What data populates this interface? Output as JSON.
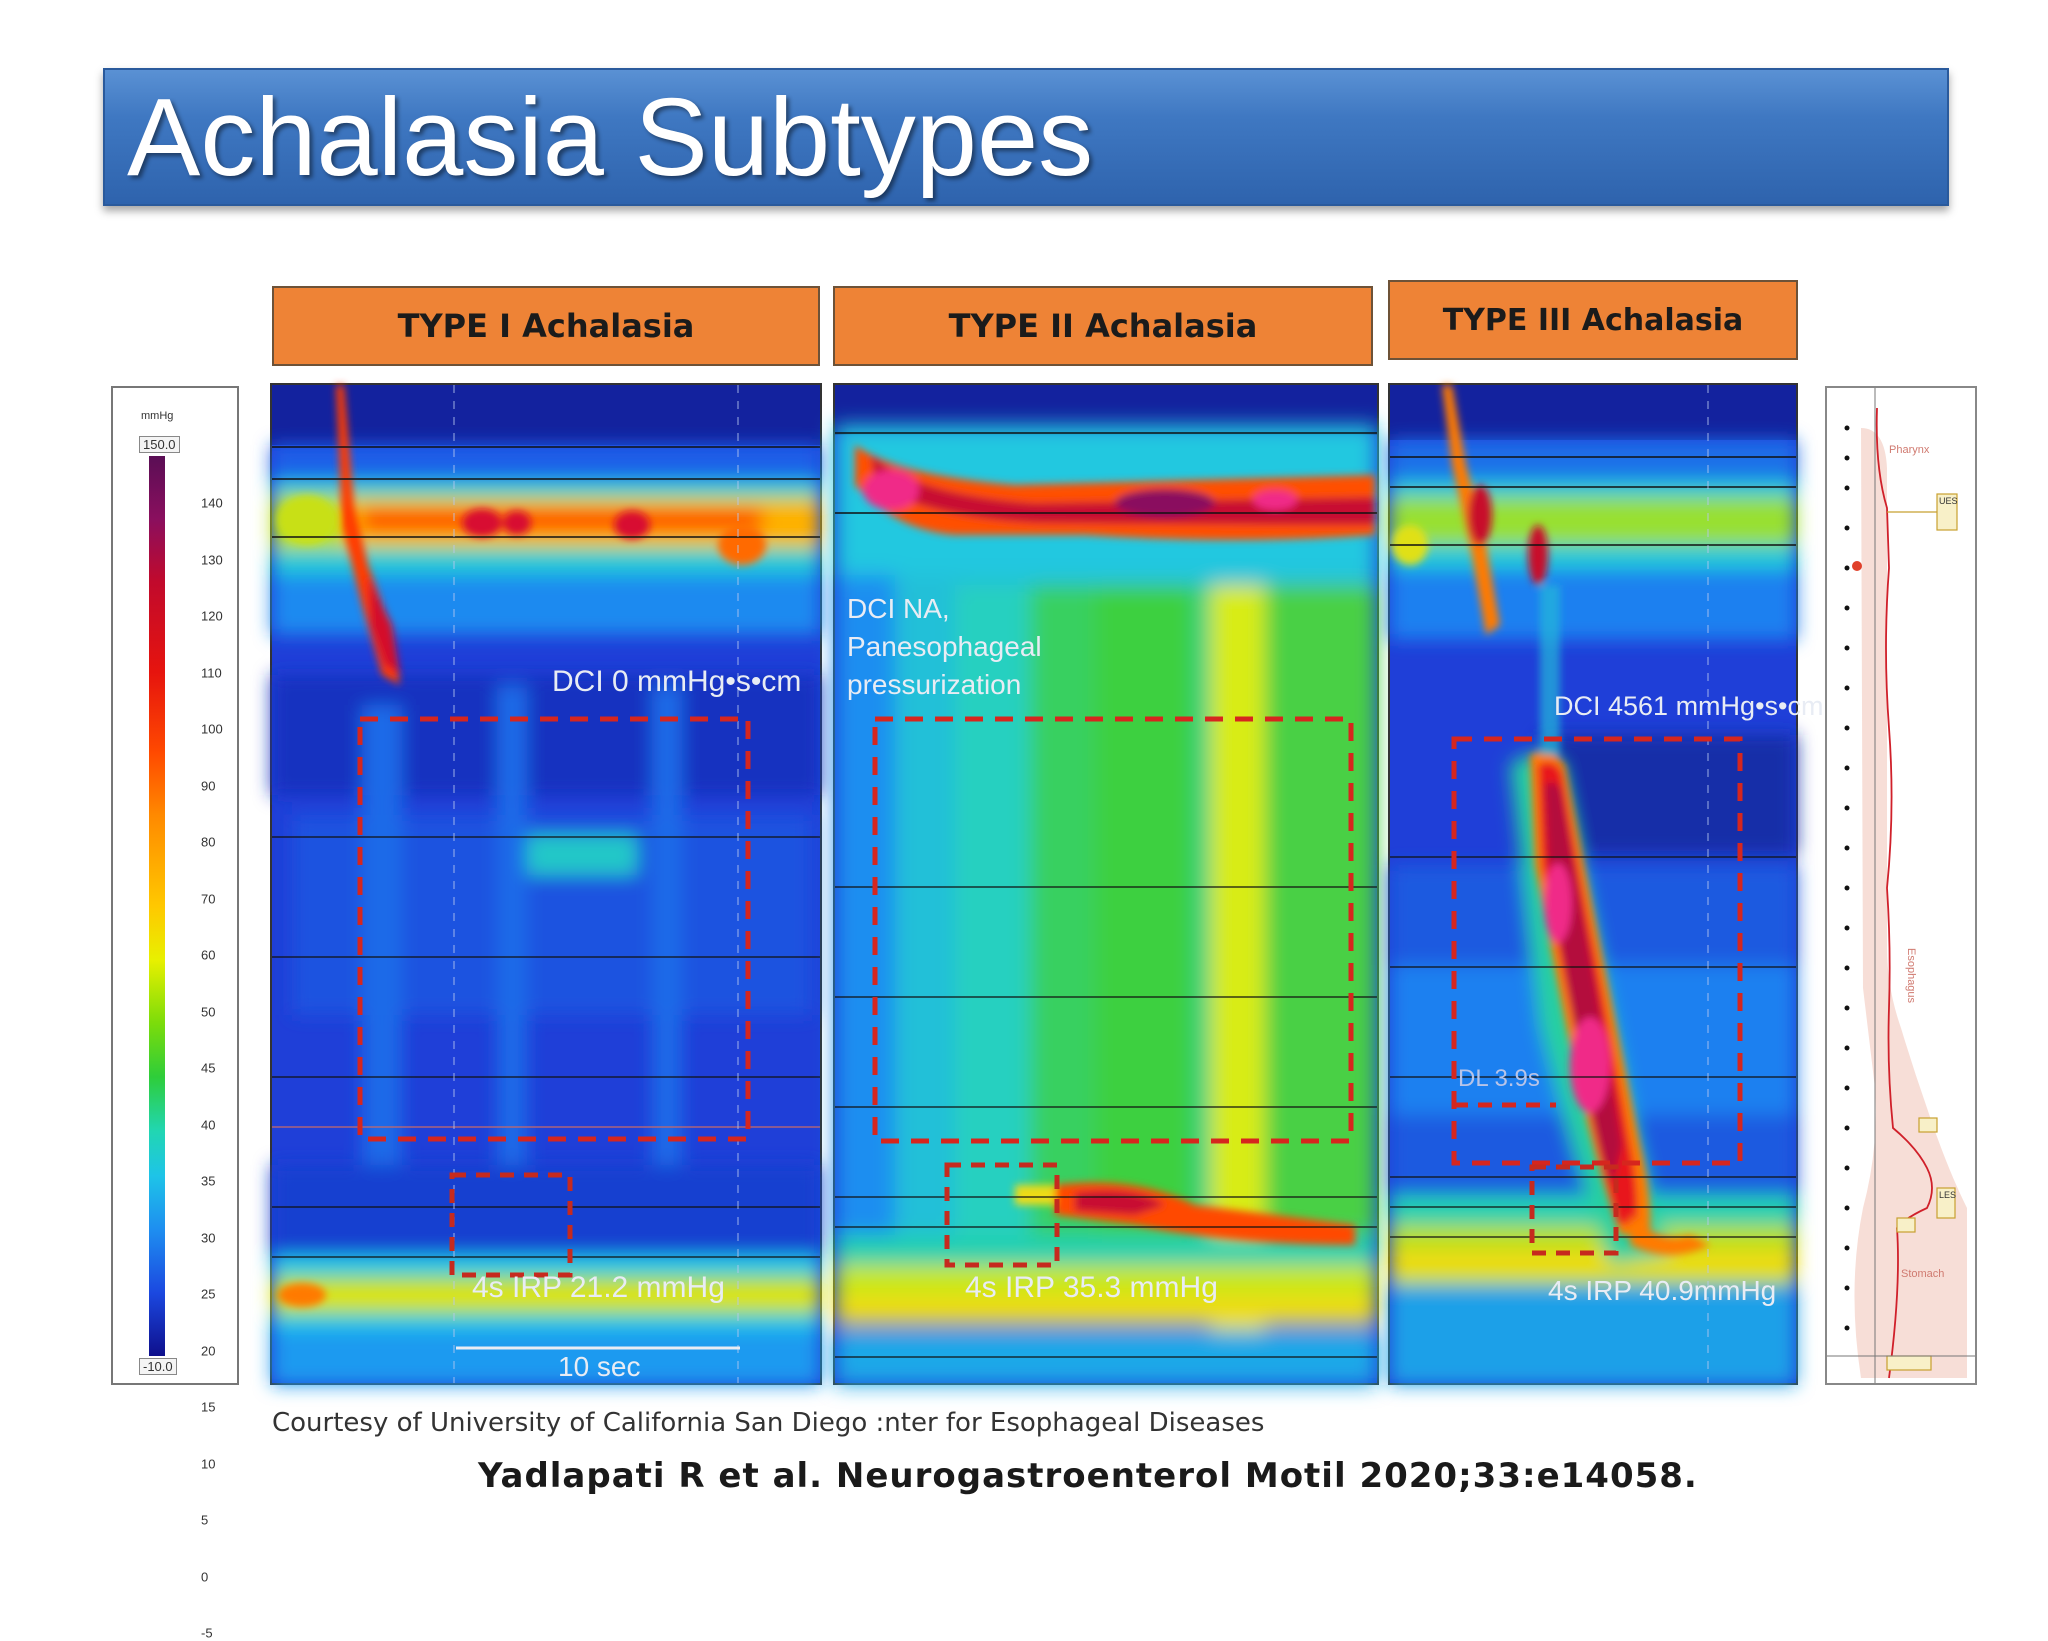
{
  "slide": {
    "title": "Achalasia Subtypes"
  },
  "scale": {
    "unit": "mmHg",
    "max": "150.0",
    "min": "-10.0",
    "ticks": [
      "140",
      "130",
      "120",
      "110",
      "100",
      "90",
      "80",
      "70",
      "60",
      "50",
      "45",
      "40",
      "35",
      "30",
      "25",
      "20",
      "15",
      "10",
      "5",
      "0",
      "-5"
    ]
  },
  "panels": [
    {
      "header": "TYPE I Achalasia",
      "labels": {
        "dci": "DCI 0 mmHg•s•cm",
        "irp": "4s IRP 21.2 mmHg",
        "scale_bar": "10 sec"
      }
    },
    {
      "header": "TYPE II Achalasia",
      "labels": {
        "dci_line1": "DCI NA,",
        "dci_line2": "Panesophageal",
        "dci_line3": "pressurization",
        "irp": "4s IRP 35.3 mmHg"
      }
    },
    {
      "header": "TYPE III Achalasia",
      "labels": {
        "dci": "DCI 4561 mmHg•s•cm",
        "dl": "DL 3.9s",
        "irp": "4s IRP 40.9mmHg"
      }
    }
  ],
  "anatomy": {
    "pharynx": "Pharynx",
    "esophagus": "Esophagus",
    "stomach": "Stomach",
    "ues": "UES",
    "les": "LES"
  },
  "footer": {
    "credit": "Courtesy of University of California San Diego :nter for Esophageal Diseases",
    "citation": "Yadlapati R et al. Neurogastroenterol Motil  2020;33:e14058."
  }
}
